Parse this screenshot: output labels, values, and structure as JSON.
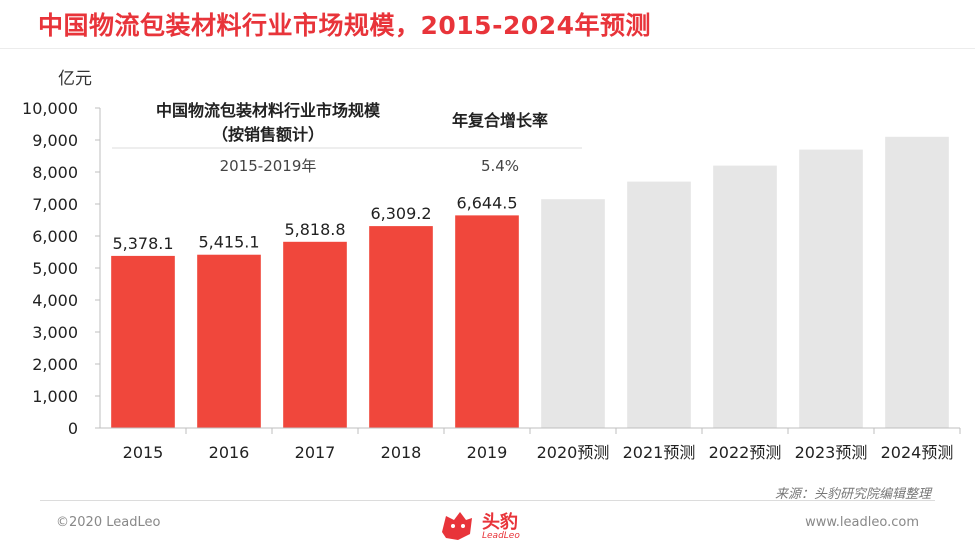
{
  "title": "中国物流包装材料行业市场规模，2015-2024年预测",
  "unit_label": "亿元",
  "cagr_table": {
    "header_left_line1": "中国物流包装材料行业市场规模",
    "header_left_line2": "（按销售额计）",
    "header_right": "年复合增长率",
    "period": "2015-2019年",
    "rate": "5.4%"
  },
  "source": "来源：头豹研究院编辑整理",
  "copyright": "©2020 LeadLeo",
  "website": "www.leadleo.com",
  "logo": {
    "name": "头豹",
    "sub": "LeadLeo"
  },
  "colors": {
    "actual": "#f0473c",
    "forecast": "#e6e6e6",
    "title": "#e8343a"
  },
  "chart_data": {
    "type": "bar",
    "categories": [
      "2015",
      "2016",
      "2017",
      "2018",
      "2019",
      "2020预测",
      "2021预测",
      "2022预测",
      "2023预测",
      "2024预测"
    ],
    "values": [
      5378.1,
      5415.1,
      5818.8,
      6309.2,
      6644.5,
      7150,
      7700,
      8200,
      8700,
      9100
    ],
    "value_labels": [
      "5,378.1",
      "5,415.1",
      "5,818.8",
      "6,309.2",
      "6,644.5",
      "",
      "",
      "",
      "",
      ""
    ],
    "forecast": [
      false,
      false,
      false,
      false,
      false,
      true,
      true,
      true,
      true,
      true
    ],
    "ylim": [
      0,
      10000
    ],
    "yticks": [
      0,
      1000,
      2000,
      3000,
      4000,
      5000,
      6000,
      7000,
      8000,
      9000,
      10000
    ],
    "ytick_labels": [
      "0",
      "1,000",
      "2,000",
      "3,000",
      "4,000",
      "5,000",
      "6,000",
      "7,000",
      "8,000",
      "9,000",
      "10,000"
    ],
    "ylabel": "亿元",
    "grid": false
  }
}
